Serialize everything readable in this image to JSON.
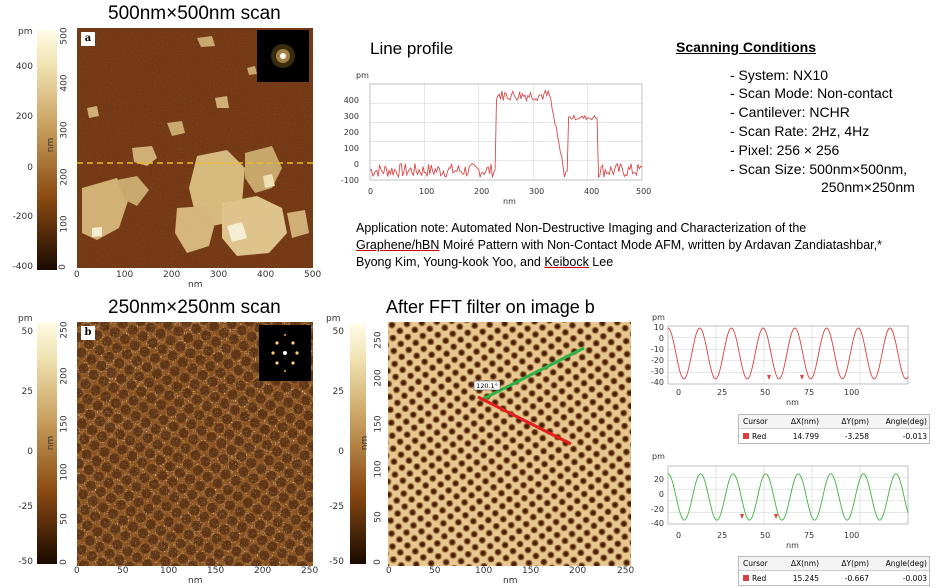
{
  "panel_a": {
    "title": "500nm×500nm scan",
    "letter": "a",
    "colorbar_unit": "pm",
    "colorbar_ticks": [
      "400",
      "200",
      "0",
      "-200",
      "-400"
    ],
    "y_unit": "nm",
    "y_ticks": [
      "500",
      "400",
      "300",
      "200",
      "100",
      "0"
    ],
    "x_ticks": [
      "0",
      "100",
      "200",
      "300",
      "400",
      "500"
    ],
    "x_unit": "nm"
  },
  "line_profile": {
    "title": "Line profile",
    "y_unit": "pm",
    "x_unit": "nm",
    "y_ticks": [
      "400",
      "300",
      "200",
      "100",
      "0",
      "-100"
    ],
    "x_ticks": [
      "0",
      "100",
      "200",
      "300",
      "400",
      "500"
    ]
  },
  "conditions": {
    "title": "Scanning Conditions",
    "lines": [
      "- System:  NX10",
      "- Scan Mode: Non-contact",
      "- Cantilever: NCHR",
      "- Scan Rate:  2Hz, 4Hz",
      "- Pixel:  256 × 256",
      "- Scan Size:  500nm×500nm,",
      "250nm×250nm"
    ]
  },
  "app_note": {
    "part1": "Application note: Automated Non-Destructive Imaging and Characterization of the",
    "link1": "Graphene/hBN",
    "part2": " Moiré Pattern with Non-Contact Mode AFM, written by Ardavan Zandiatashbar,* Byong Kim, Young-kook Yoo, and ",
    "link2": "Keibock",
    "part3": " Lee"
  },
  "panel_b": {
    "title": "250nm×250nm scan",
    "letter": "b",
    "colorbar_unit": "pm",
    "colorbar_ticks": [
      "50",
      "25",
      "0",
      "-25",
      "-50"
    ],
    "y_unit": "nm",
    "y_ticks": [
      "250",
      "200",
      "150",
      "100",
      "50",
      "0"
    ],
    "x_ticks": [
      "0",
      "50",
      "100",
      "150",
      "200",
      "250"
    ],
    "x_unit": "nm"
  },
  "panel_fft": {
    "title": "After FFT filter on image b",
    "colorbar_unit": "pm",
    "colorbar_ticks": [
      "50",
      "25",
      "0",
      "-25",
      "-50"
    ],
    "y_unit": "nm",
    "y_ticks": [
      "250",
      "200",
      "150",
      "100",
      "50",
      "0"
    ],
    "x_ticks": [
      "0",
      "50",
      "100",
      "150",
      "200",
      "250"
    ],
    "x_unit": "nm",
    "angle_label": "120.1°"
  },
  "profile_red": {
    "y_unit": "pm",
    "y_ticks": [
      "10",
      "0",
      "-10",
      "-20",
      "-30",
      "-40"
    ],
    "x_ticks": [
      "0",
      "25",
      "50",
      "75",
      "100"
    ],
    "x_unit": "nm",
    "table_headers": [
      "Cursor",
      "ΔX(nm)",
      "ΔY(pm)",
      "Angle(deg)"
    ],
    "table_row": [
      "Red",
      "14.799",
      "-3.258",
      "-0.013"
    ],
    "color": "#d94040"
  },
  "profile_green": {
    "y_unit": "pm",
    "y_ticks": [
      "20",
      "0",
      "-20",
      "-40"
    ],
    "x_ticks": [
      "0",
      "25",
      "50",
      "75",
      "100"
    ],
    "x_unit": "nm",
    "table_headers": [
      "Cursor",
      "ΔX(nm)",
      "ΔY(pm)",
      "Angle(deg)"
    ],
    "table_row": [
      "Red",
      "15.245",
      "-0.667",
      "-0.003"
    ],
    "color": "#3db33d"
  },
  "colors": {
    "afm_dark": "#6b2c05",
    "afm_mid": "#b8864a",
    "afm_light": "#f0e2b0",
    "red_line": "#e31e1e",
    "green_line": "#2bb34a",
    "scan_line": "#e8c020"
  }
}
